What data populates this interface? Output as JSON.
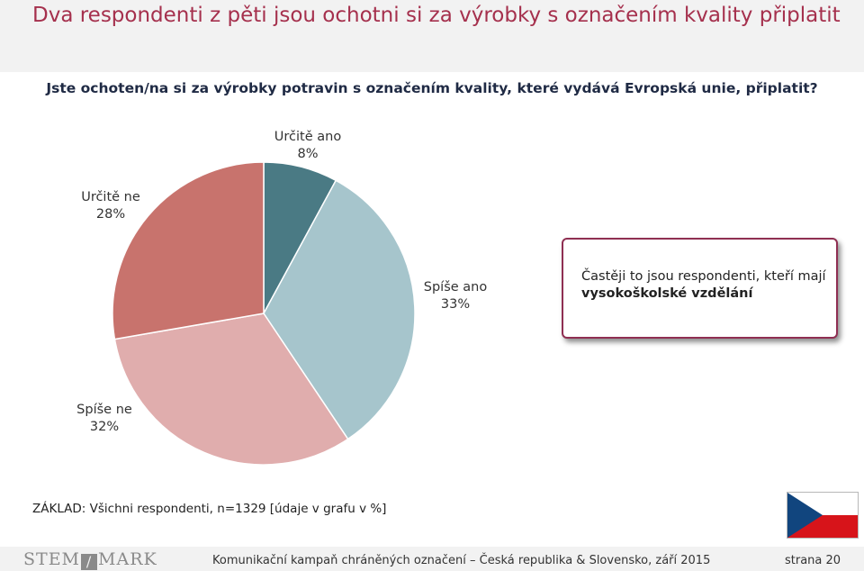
{
  "slide": {
    "title": "Dva respondenti z pěti jsou ochotni si za výrobky s označením kvality připlatit",
    "question": "Jste ochoten/na si za výrobky potravin s označením kvality, které vydává Evropská unie, připlatit?"
  },
  "chart_data": {
    "type": "pie",
    "title": "",
    "slices": [
      {
        "label": "Určitě ano",
        "value": 8,
        "display": "8%",
        "color": "#4a7a84"
      },
      {
        "label": "Spíše ano",
        "value": 33,
        "display": "33%",
        "color": "#a6c5cc"
      },
      {
        "label": "Spíše ne",
        "value": 32,
        "display": "32%",
        "color": "#e0adad"
      },
      {
        "label": "Určitě ne",
        "value": 28,
        "display": "28%",
        "color": "#c8736d"
      }
    ]
  },
  "callout": {
    "text_before": "Častěji to jsou respondenti, kteří mají ",
    "text_bold": "vysokoškolské vzdělání"
  },
  "base_note": "ZÁKLAD: Všichni respondenti, n=1329 [údaje v grafu v %]",
  "footer": {
    "logo_left": "STEM",
    "logo_mark": "/",
    "logo_right": "MARK",
    "text": "Komunikační kampaň chráněných označení – Česká republika & Slovensko, září 2015",
    "page": "strana 20"
  },
  "flag_colors": {
    "white": "#ffffff",
    "red": "#d7141a",
    "blue": "#11457e"
  }
}
